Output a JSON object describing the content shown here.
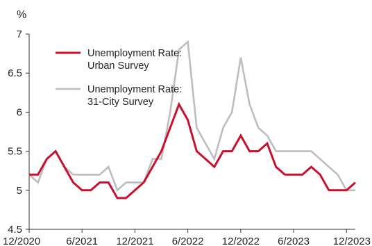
{
  "chart_data": {
    "type": "line",
    "unit_label": "%",
    "ylim": [
      4.5,
      7
    ],
    "yticks": [
      4.5,
      5,
      5.5,
      6,
      6.5,
      7
    ],
    "ytick_labels": [
      "4.5",
      "5",
      "5.5",
      "6",
      "6.5",
      "7"
    ],
    "x_start": "12/2020",
    "x_end": "12/2023",
    "xtick_labels": [
      "12/2020",
      "6/2021",
      "12/2021",
      "6/2022",
      "12/2022",
      "6/2023",
      "12/2023"
    ],
    "grid": false,
    "legend_position": "top-left",
    "series": [
      {
        "name": "Unemployment Rate: Urban Survey",
        "legend_lines": [
          "Unemployment Rate:",
          "Urban Survey"
        ],
        "color": "#c8102e",
        "values": [
          5.2,
          5.2,
          5.4,
          5.5,
          5.3,
          5.1,
          5.0,
          5.0,
          5.1,
          5.1,
          4.9,
          4.9,
          5.0,
          5.1,
          5.3,
          5.5,
          5.8,
          6.1,
          5.9,
          5.5,
          5.4,
          5.3,
          5.5,
          5.5,
          5.7,
          5.5,
          5.5,
          5.6,
          5.3,
          5.2,
          5.2,
          5.2,
          5.3,
          5.2,
          5.0,
          5.0,
          5.0,
          5.1
        ]
      },
      {
        "name": "Unemployment Rate: 31-City Survey",
        "legend_lines": [
          "Unemployment Rate:",
          "31-City Survey"
        ],
        "color": "#bdbdbd",
        "values": [
          5.2,
          5.1,
          5.4,
          5.5,
          5.3,
          5.2,
          5.2,
          5.2,
          5.2,
          5.3,
          5.0,
          5.1,
          5.1,
          5.1,
          5.4,
          5.4,
          6.0,
          6.8,
          6.9,
          5.8,
          5.6,
          5.4,
          5.8,
          6.0,
          6.7,
          6.1,
          5.8,
          5.7,
          5.5,
          5.5,
          5.5,
          5.5,
          5.5,
          5.4,
          5.3,
          5.2,
          5.0,
          5.0
        ]
      }
    ]
  }
}
